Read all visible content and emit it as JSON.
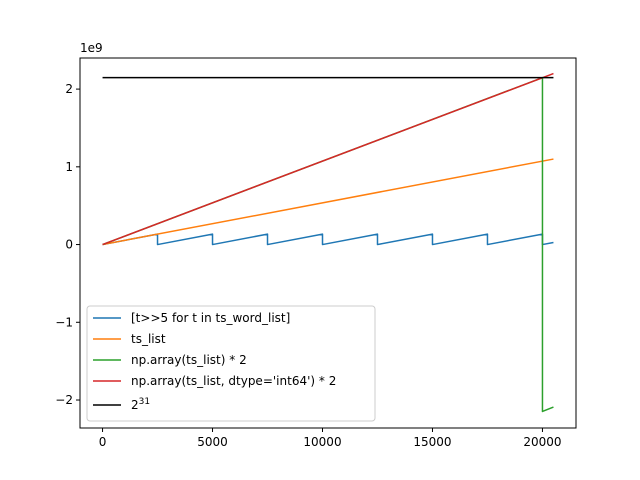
{
  "chart_data": {
    "type": "line",
    "title": "",
    "xlabel": "",
    "ylabel": "",
    "y_offset_label": "1e9",
    "xlim": [
      -1025,
      21525
    ],
    "ylim": [
      -2.36,
      2.4
    ],
    "x_ticks": [
      {
        "value": 0,
        "label": "0"
      },
      {
        "value": 5000,
        "label": "5000"
      },
      {
        "value": 10000,
        "label": "10000"
      },
      {
        "value": 15000,
        "label": "15000"
      },
      {
        "value": 20000,
        "label": "20000"
      }
    ],
    "y_ticks": [
      {
        "value": 2,
        "label": "2"
      },
      {
        "value": 1,
        "label": "1"
      },
      {
        "value": 0,
        "label": "0"
      },
      {
        "value": -1,
        "label": "−1"
      },
      {
        "value": -2,
        "label": "−2"
      }
    ],
    "grid": false,
    "legend_position": "lower-left",
    "series": [
      {
        "name": "[t>>5 for t in ts_word_list]",
        "color": "#1f77b4",
        "x": [
          0,
          2500,
          2500,
          5000,
          5000,
          7500,
          7500,
          10000,
          10000,
          12500,
          12500,
          15000,
          15000,
          17500,
          17500,
          20000,
          20000,
          20500
        ],
        "y": [
          0,
          0.134,
          0,
          0.134,
          0,
          0.134,
          0,
          0.134,
          0,
          0.134,
          0,
          0.134,
          0,
          0.134,
          0,
          0.134,
          0,
          0.027
        ]
      },
      {
        "name": "ts_list",
        "color": "#ff7f0e",
        "x": [
          0,
          20500
        ],
        "y": [
          0,
          1.1
        ]
      },
      {
        "name": "np.array(ts_list) * 2",
        "color": "#2ca02c",
        "x": [
          0,
          20000,
          20000,
          20500
        ],
        "y": [
          0,
          2.147,
          -2.147,
          -2.09
        ]
      },
      {
        "name": "np.array(ts_list, dtype='int64') * 2",
        "color": "#d62728",
        "x": [
          0,
          20500
        ],
        "y": [
          0,
          2.2
        ]
      },
      {
        "name_base": "2",
        "name_sup": "31",
        "color": "#000000",
        "x": [
          0,
          20500
        ],
        "y": [
          2.147,
          2.147
        ]
      }
    ]
  }
}
